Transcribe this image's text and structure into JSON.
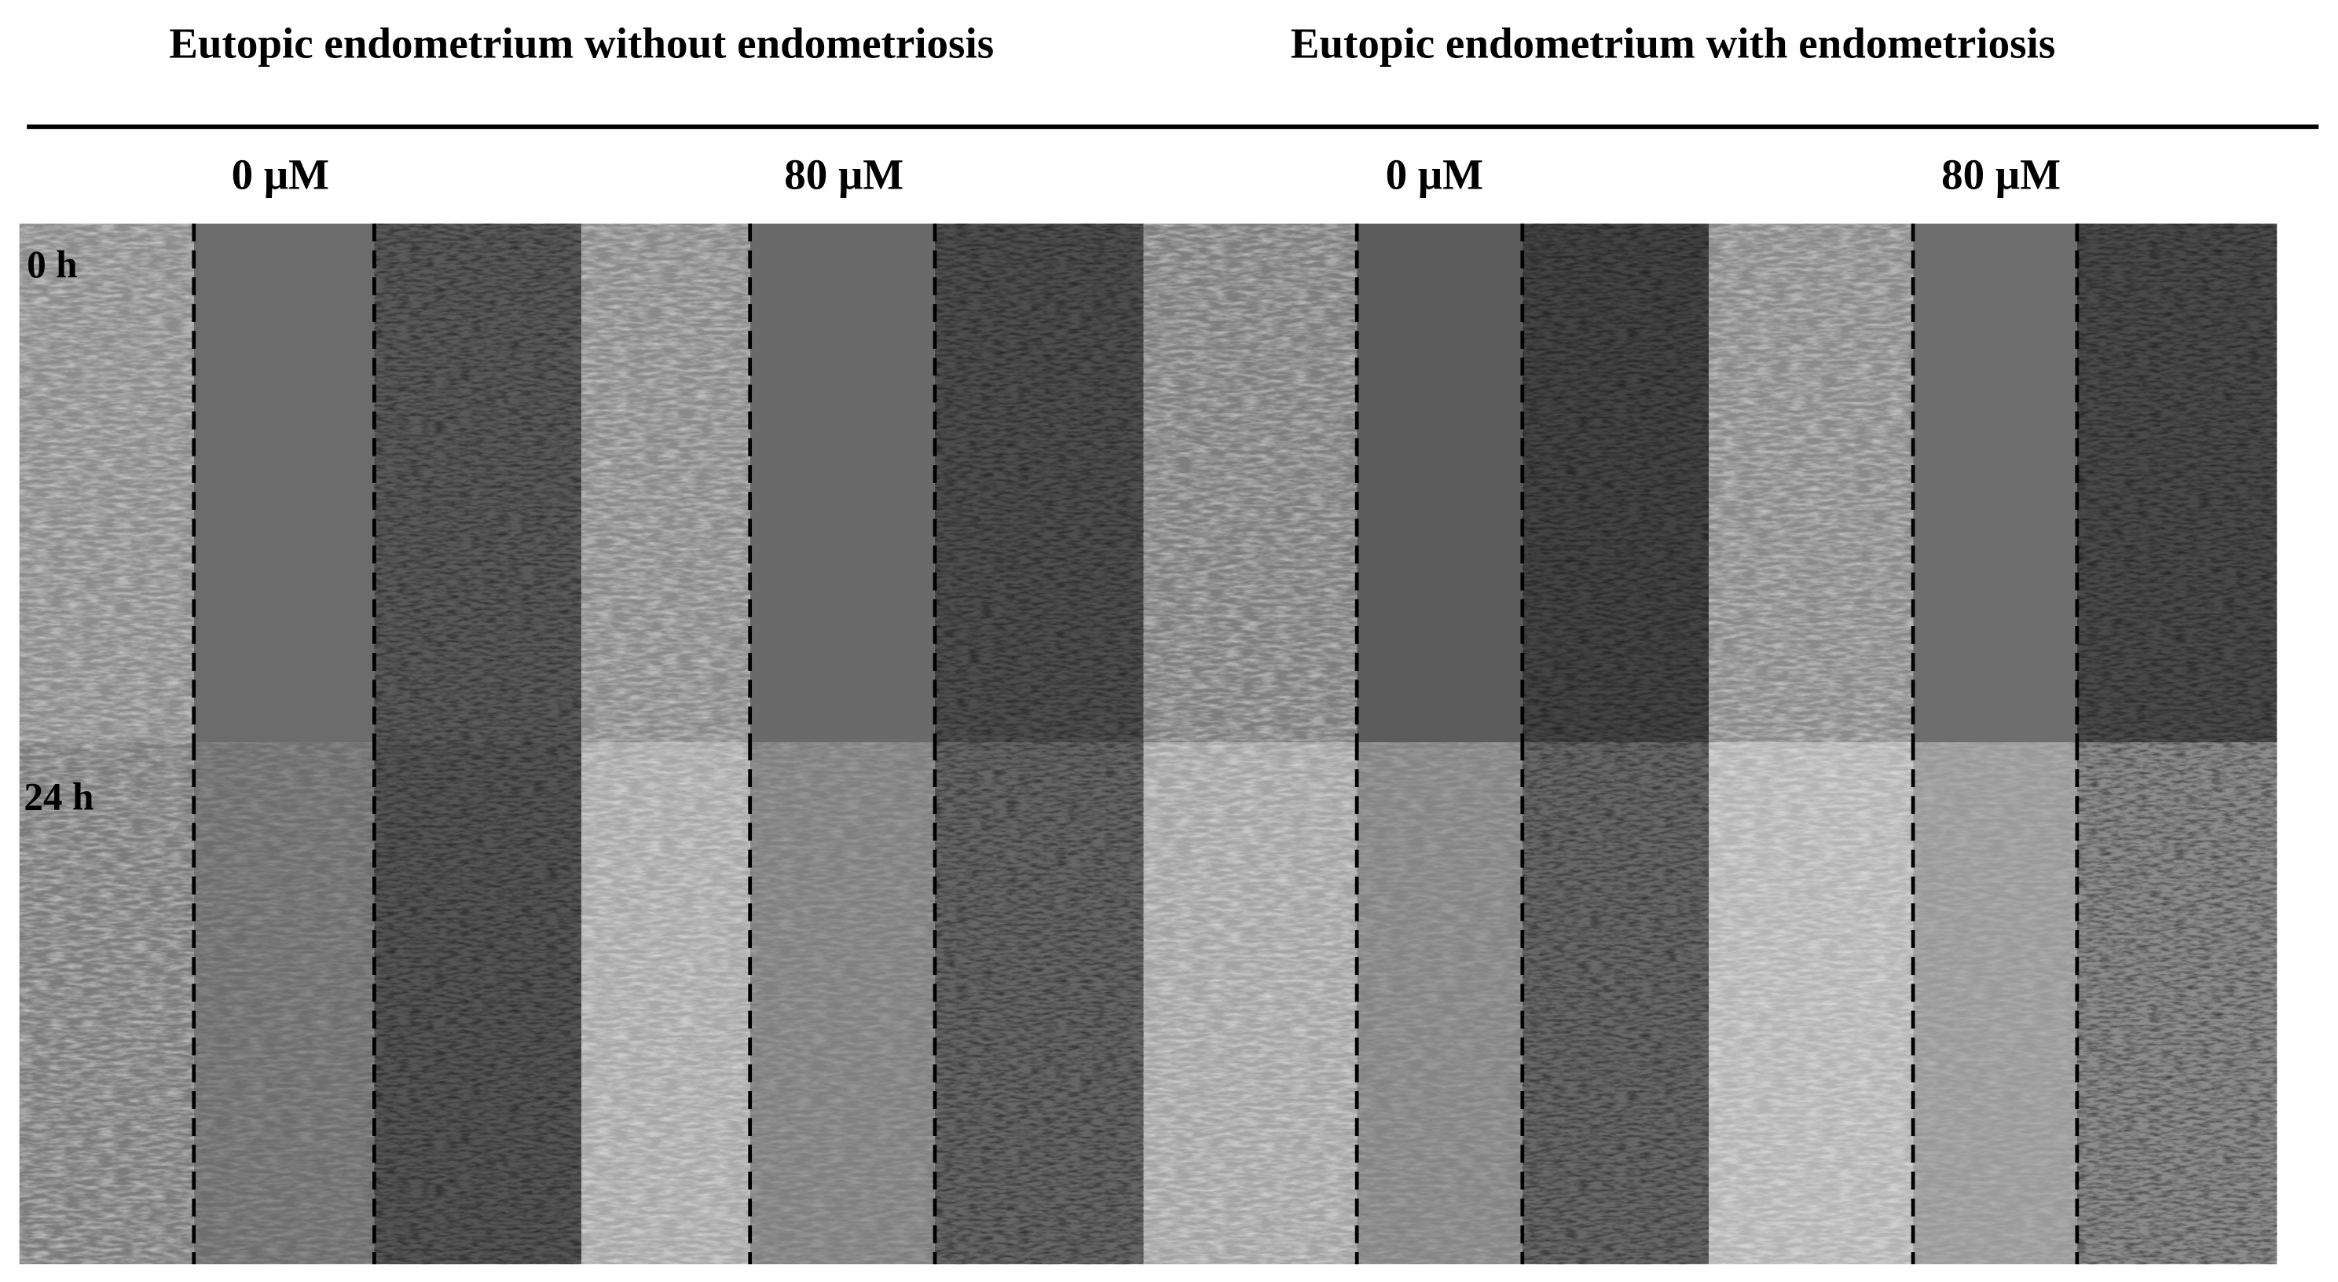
{
  "header": {
    "groups": [
      "Eutopic endometrium without endometriosis",
      "Eutopic endometrium with endometriosis"
    ]
  },
  "columns": [
    "0 μM",
    "80 μM",
    "0 μM",
    "80 μM"
  ],
  "rows": [
    "0 h",
    "24 h"
  ]
}
